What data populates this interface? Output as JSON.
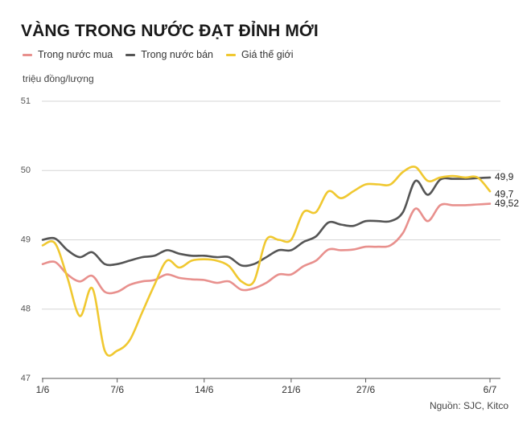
{
  "title": "VÀNG TRONG NƯỚC ĐẠT ĐỈNH MỚI",
  "source": "Nguồn: SJC, Kitco",
  "chart_data": {
    "type": "line",
    "ylabel": "triệu đồng/lượng",
    "ylim": [
      47,
      51
    ],
    "yticks": [
      "47",
      "48",
      "49",
      "50",
      "51"
    ],
    "xlim": [
      0,
      36
    ],
    "xticks": [
      {
        "x": 0,
        "label": "1/6"
      },
      {
        "x": 6,
        "label": "7/6"
      },
      {
        "x": 13,
        "label": "14/6"
      },
      {
        "x": 20,
        "label": "21/6"
      },
      {
        "x": 26,
        "label": "27/6"
      },
      {
        "x": 36,
        "label": "6/7"
      }
    ],
    "grid": true,
    "legend_position": "top-left",
    "series": [
      {
        "name": "Trong nước mua",
        "color": "#e8908d",
        "end_label": "49,52",
        "points": [
          [
            0,
            48.65
          ],
          [
            1,
            48.68
          ],
          [
            2,
            48.5
          ],
          [
            3,
            48.4
          ],
          [
            4,
            48.48
          ],
          [
            5,
            48.25
          ],
          [
            6,
            48.25
          ],
          [
            7,
            48.35
          ],
          [
            8,
            48.4
          ],
          [
            9,
            48.42
          ],
          [
            10,
            48.5
          ],
          [
            11,
            48.45
          ],
          [
            12,
            48.43
          ],
          [
            13,
            48.42
          ],
          [
            14,
            48.38
          ],
          [
            15,
            48.4
          ],
          [
            16,
            48.28
          ],
          [
            17,
            48.3
          ],
          [
            18,
            48.38
          ],
          [
            19,
            48.5
          ],
          [
            20,
            48.5
          ],
          [
            21,
            48.62
          ],
          [
            22,
            48.7
          ],
          [
            23,
            48.86
          ],
          [
            24,
            48.85
          ],
          [
            25,
            48.86
          ],
          [
            26,
            48.9
          ],
          [
            27,
            48.9
          ],
          [
            28,
            48.92
          ],
          [
            29,
            49.1
          ],
          [
            30,
            49.45
          ],
          [
            31,
            49.27
          ],
          [
            32,
            49.5
          ],
          [
            33,
            49.5
          ],
          [
            34,
            49.5
          ],
          [
            35,
            49.51
          ],
          [
            36,
            49.52
          ]
        ]
      },
      {
        "name": "Trong nước bán",
        "color": "#555555",
        "end_label": "49,9",
        "points": [
          [
            0,
            49.0
          ],
          [
            1,
            49.02
          ],
          [
            2,
            48.85
          ],
          [
            3,
            48.75
          ],
          [
            4,
            48.82
          ],
          [
            5,
            48.65
          ],
          [
            6,
            48.65
          ],
          [
            7,
            48.7
          ],
          [
            8,
            48.75
          ],
          [
            9,
            48.77
          ],
          [
            10,
            48.85
          ],
          [
            11,
            48.8
          ],
          [
            12,
            48.77
          ],
          [
            13,
            48.77
          ],
          [
            14,
            48.75
          ],
          [
            15,
            48.75
          ],
          [
            16,
            48.63
          ],
          [
            17,
            48.65
          ],
          [
            18,
            48.75
          ],
          [
            19,
            48.85
          ],
          [
            20,
            48.85
          ],
          [
            21,
            48.97
          ],
          [
            22,
            49.05
          ],
          [
            23,
            49.25
          ],
          [
            24,
            49.22
          ],
          [
            25,
            49.2
          ],
          [
            26,
            49.27
          ],
          [
            27,
            49.27
          ],
          [
            28,
            49.27
          ],
          [
            29,
            49.4
          ],
          [
            30,
            49.85
          ],
          [
            31,
            49.65
          ],
          [
            32,
            49.87
          ],
          [
            33,
            49.88
          ],
          [
            34,
            49.88
          ],
          [
            35,
            49.89
          ],
          [
            36,
            49.9
          ]
        ]
      },
      {
        "name": "Giá thế giới",
        "color": "#f0c830",
        "end_label": "49,7",
        "points": [
          [
            0,
            48.92
          ],
          [
            1,
            48.95
          ],
          [
            2,
            48.45
          ],
          [
            3,
            47.9
          ],
          [
            4,
            48.3
          ],
          [
            5,
            47.4
          ],
          [
            6,
            47.4
          ],
          [
            7,
            47.55
          ],
          [
            8,
            47.95
          ],
          [
            9,
            48.35
          ],
          [
            10,
            48.7
          ],
          [
            11,
            48.6
          ],
          [
            12,
            48.7
          ],
          [
            13,
            48.72
          ],
          [
            14,
            48.7
          ],
          [
            15,
            48.62
          ],
          [
            16,
            48.4
          ],
          [
            17,
            48.4
          ],
          [
            18,
            49.0
          ],
          [
            19,
            49.0
          ],
          [
            20,
            49.0
          ],
          [
            21,
            49.4
          ],
          [
            22,
            49.4
          ],
          [
            23,
            49.7
          ],
          [
            24,
            49.6
          ],
          [
            25,
            49.7
          ],
          [
            26,
            49.8
          ],
          [
            27,
            49.8
          ],
          [
            28,
            49.8
          ],
          [
            29,
            49.98
          ],
          [
            30,
            50.05
          ],
          [
            31,
            49.85
          ],
          [
            32,
            49.9
          ],
          [
            33,
            49.92
          ],
          [
            34,
            49.9
          ],
          [
            35,
            49.9
          ],
          [
            36,
            49.7
          ]
        ]
      }
    ]
  }
}
